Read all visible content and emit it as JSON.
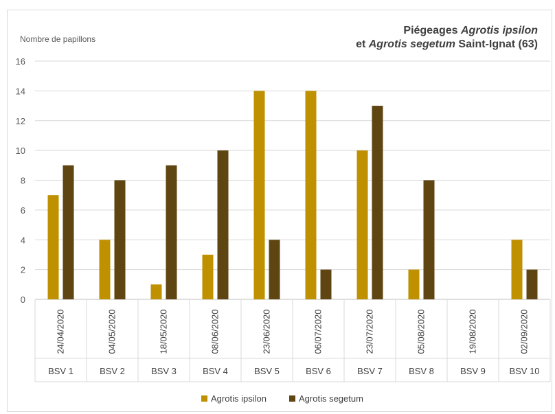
{
  "chart_data": {
    "type": "bar",
    "title_parts": [
      {
        "text": "Piégeages ",
        "italic": false,
        "line": 0
      },
      {
        "text": "Agrotis ipsilon",
        "italic": true,
        "line": 0
      },
      {
        "text": "et ",
        "italic": false,
        "line": 1
      },
      {
        "text": "Agrotis segetum",
        "italic": true,
        "line": 1
      },
      {
        "text": " Saint-Ignat (63)",
        "italic": false,
        "line": 1
      }
    ],
    "ylabel": "Nombre de papillons",
    "ylim": [
      0,
      16
    ],
    "yticks": [
      0,
      2,
      4,
      6,
      8,
      10,
      12,
      14,
      16
    ],
    "grid": true,
    "legend_position": "bottom",
    "categories": [
      "24/04/2020",
      "04/05/2020",
      "18/05/2020",
      "08/06/2020",
      "23/06/2020",
      "06/07/2020",
      "23/07/2020",
      "05/08/2020",
      "19/08/2020",
      "02/09/2020"
    ],
    "groups": [
      "BSV 1",
      "BSV 2",
      "BSV 3",
      "BSV 4",
      "BSV 5",
      "BSV 6",
      "BSV 7",
      "BSV 8",
      "BSV 9",
      "BSV 10"
    ],
    "series": [
      {
        "name": "Agrotis ipsilon",
        "color": "#bf9000",
        "values": [
          7,
          4,
          1,
          3,
          14,
          14,
          10,
          2,
          null,
          4
        ]
      },
      {
        "name": "Agrotis segetum",
        "color": "#5f4512",
        "values": [
          9,
          8,
          9,
          10,
          4,
          2,
          13,
          8,
          null,
          2
        ]
      }
    ]
  }
}
